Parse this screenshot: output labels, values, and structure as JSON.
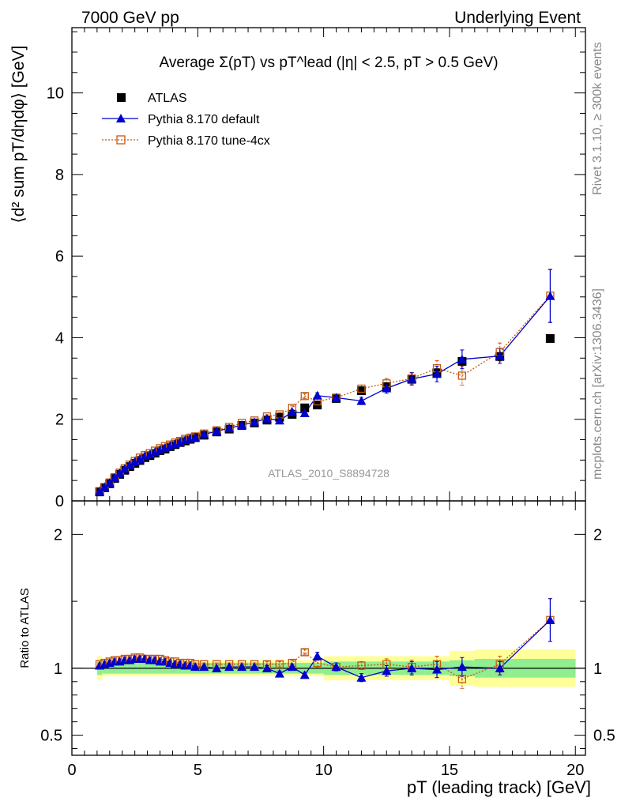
{
  "header": {
    "left": "7000 GeV pp",
    "right": "Underlying Event"
  },
  "side": {
    "rivet": "Rivet 3.1.10, ≥ 300k events",
    "mcplots": "mcplots.cern.ch [arXiv:1306.3436]"
  },
  "chart_data": [
    {
      "type": "scatter",
      "title": "Average Σ(pT) vs pT^lead (|η| < 2.5, pT > 0.5 GeV)",
      "ylabel": "⟨d² sum pT/dηdφ⟩ [GeV]",
      "xlabel": "pT (leading track) [GeV]",
      "xlim": [
        0,
        20.4
      ],
      "ylim": [
        0,
        11.6
      ],
      "xticks": [
        "0",
        "5",
        "10",
        "15",
        "20"
      ],
      "yticks": [
        "0",
        "2",
        "4",
        "6",
        "8",
        "10"
      ],
      "watermark": "ATLAS_2010_S8894728",
      "legend_position": "top-left",
      "x": [
        1.1,
        1.3,
        1.5,
        1.7,
        1.9,
        2.1,
        2.3,
        2.5,
        2.7,
        2.9,
        3.1,
        3.3,
        3.5,
        3.7,
        3.9,
        4.1,
        4.3,
        4.5,
        4.7,
        4.9,
        5.25,
        5.75,
        6.25,
        6.75,
        7.25,
        7.75,
        8.25,
        8.75,
        9.25,
        9.75,
        10.5,
        11.5,
        12.5,
        13.5,
        14.5,
        15.5,
        17.0,
        19.0
      ],
      "series": [
        {
          "name": "ATLAS",
          "color": "#000000",
          "marker": "square",
          "values": [
            0.22,
            0.32,
            0.42,
            0.55,
            0.65,
            0.75,
            0.84,
            0.92,
            0.99,
            1.06,
            1.11,
            1.17,
            1.23,
            1.27,
            1.33,
            1.38,
            1.43,
            1.47,
            1.51,
            1.55,
            1.61,
            1.69,
            1.76,
            1.85,
            1.91,
            1.98,
            2.05,
            2.12,
            2.28,
            2.35,
            2.51,
            2.7,
            2.8,
            2.98,
            3.14,
            3.42,
            3.54,
            3.98
          ]
        },
        {
          "name": "Pythia 8.170 default",
          "color": "#0000cc",
          "marker": "triangle",
          "values": [
            0.24,
            0.34,
            0.44,
            0.57,
            0.68,
            0.79,
            0.88,
            0.96,
            1.03,
            1.1,
            1.14,
            1.2,
            1.25,
            1.3,
            1.35,
            1.4,
            1.44,
            1.49,
            1.53,
            1.56,
            1.63,
            1.71,
            1.78,
            1.86,
            1.93,
            2.02,
            1.97,
            2.18,
            2.15,
            2.58,
            2.53,
            2.45,
            2.76,
            2.99,
            3.11,
            3.47,
            3.55,
            5.02
          ],
          "err": [
            0.02,
            0.02,
            0.02,
            0.02,
            0.02,
            0.02,
            0.02,
            0.02,
            0.02,
            0.02,
            0.02,
            0.02,
            0.02,
            0.02,
            0.02,
            0.02,
            0.02,
            0.02,
            0.02,
            0.02,
            0.03,
            0.03,
            0.03,
            0.03,
            0.03,
            0.04,
            0.04,
            0.05,
            0.06,
            0.07,
            0.07,
            0.09,
            0.12,
            0.15,
            0.19,
            0.23,
            0.18,
            0.65
          ]
        },
        {
          "name": "Pythia 8.170 tune-4cx",
          "color": "#c45a10",
          "marker": "open-square",
          "values": [
            0.24,
            0.34,
            0.45,
            0.58,
            0.69,
            0.8,
            0.89,
            0.98,
            1.06,
            1.12,
            1.17,
            1.23,
            1.29,
            1.34,
            1.38,
            1.43,
            1.47,
            1.52,
            1.55,
            1.58,
            1.65,
            1.73,
            1.81,
            1.91,
            1.97,
            2.07,
            2.12,
            2.28,
            2.57,
            2.44,
            2.53,
            2.75,
            2.88,
            3.0,
            3.25,
            3.07,
            3.65,
            5.03
          ],
          "err": [
            0.02,
            0.02,
            0.02,
            0.02,
            0.02,
            0.02,
            0.02,
            0.02,
            0.02,
            0.02,
            0.02,
            0.02,
            0.02,
            0.02,
            0.02,
            0.02,
            0.02,
            0.02,
            0.02,
            0.02,
            0.03,
            0.03,
            0.03,
            0.03,
            0.03,
            0.04,
            0.04,
            0.05,
            0.06,
            0.07,
            0.07,
            0.09,
            0.12,
            0.15,
            0.19,
            0.23,
            0.22,
            0.65
          ]
        }
      ]
    },
    {
      "type": "scatter",
      "ylabel": "Ratio to ATLAS",
      "xlim": [
        0,
        20.4
      ],
      "ylim": [
        0.35,
        2.25
      ],
      "yticks": [
        "0.5",
        "1",
        "2"
      ],
      "band_edges": [
        1.0,
        1.2,
        1.4,
        1.6,
        1.8,
        2.0,
        2.2,
        2.4,
        2.6,
        2.8,
        3.0,
        3.2,
        3.4,
        3.6,
        3.8,
        4.0,
        4.2,
        4.4,
        4.6,
        4.8,
        5.0,
        5.5,
        6.0,
        6.5,
        7.0,
        7.5,
        8.0,
        8.5,
        9.0,
        9.5,
        10.0,
        11.0,
        12.0,
        13.0,
        14.0,
        15.0,
        16.0,
        18.0,
        20.0
      ],
      "band_inner": [
        0.05,
        0.04,
        0.04,
        0.04,
        0.04,
        0.04,
        0.04,
        0.04,
        0.04,
        0.04,
        0.04,
        0.04,
        0.04,
        0.04,
        0.04,
        0.04,
        0.04,
        0.04,
        0.04,
        0.04,
        0.04,
        0.04,
        0.04,
        0.04,
        0.04,
        0.04,
        0.04,
        0.04,
        0.04,
        0.04,
        0.05,
        0.05,
        0.05,
        0.05,
        0.05,
        0.06,
        0.07,
        0.07
      ],
      "band_outer": [
        0.09,
        0.06,
        0.06,
        0.06,
        0.06,
        0.06,
        0.06,
        0.06,
        0.06,
        0.06,
        0.06,
        0.06,
        0.06,
        0.06,
        0.06,
        0.06,
        0.06,
        0.06,
        0.06,
        0.06,
        0.06,
        0.06,
        0.06,
        0.06,
        0.06,
        0.06,
        0.06,
        0.06,
        0.06,
        0.06,
        0.09,
        0.09,
        0.09,
        0.09,
        0.09,
        0.13,
        0.14,
        0.14
      ],
      "x": [
        1.1,
        1.3,
        1.5,
        1.7,
        1.9,
        2.1,
        2.3,
        2.5,
        2.7,
        2.9,
        3.1,
        3.3,
        3.5,
        3.7,
        3.9,
        4.1,
        4.3,
        4.5,
        4.7,
        4.9,
        5.25,
        5.75,
        6.25,
        6.75,
        7.25,
        7.75,
        8.25,
        8.75,
        9.25,
        9.75,
        10.5,
        11.5,
        12.5,
        13.5,
        14.5,
        15.5,
        17.0,
        19.0
      ],
      "series": [
        {
          "name": "Pythia 8.170 default",
          "color": "#0000cc",
          "marker": "triangle",
          "values": [
            1.02,
            1.03,
            1.04,
            1.05,
            1.05,
            1.06,
            1.06,
            1.07,
            1.07,
            1.07,
            1.06,
            1.06,
            1.05,
            1.05,
            1.04,
            1.03,
            1.03,
            1.02,
            1.02,
            1.01,
            1.01,
            1.0,
            1.01,
            1.01,
            1.01,
            1.0,
            0.96,
            1.01,
            0.95,
            1.09,
            1.01,
            0.93,
            0.98,
            1.0,
            0.99,
            1.01,
            1.0,
            1.36
          ],
          "err": [
            0.01,
            0.01,
            0.01,
            0.01,
            0.01,
            0.01,
            0.01,
            0.01,
            0.01,
            0.01,
            0.01,
            0.01,
            0.01,
            0.01,
            0.01,
            0.01,
            0.01,
            0.01,
            0.01,
            0.01,
            0.01,
            0.01,
            0.01,
            0.01,
            0.01,
            0.02,
            0.02,
            0.02,
            0.02,
            0.03,
            0.03,
            0.03,
            0.04,
            0.05,
            0.06,
            0.07,
            0.05,
            0.16
          ]
        },
        {
          "name": "Pythia 8.170 tune-4cx",
          "color": "#c45a10",
          "marker": "open-square",
          "values": [
            1.03,
            1.04,
            1.05,
            1.06,
            1.06,
            1.07,
            1.07,
            1.08,
            1.08,
            1.07,
            1.07,
            1.07,
            1.07,
            1.06,
            1.05,
            1.05,
            1.04,
            1.04,
            1.04,
            1.03,
            1.03,
            1.03,
            1.03,
            1.03,
            1.03,
            1.03,
            1.03,
            1.04,
            1.12,
            1.04,
            1.01,
            1.02,
            1.03,
            1.01,
            1.03,
            0.92,
            1.03,
            1.36
          ],
          "err": [
            0.01,
            0.01,
            0.01,
            0.01,
            0.01,
            0.01,
            0.01,
            0.01,
            0.01,
            0.01,
            0.01,
            0.01,
            0.01,
            0.01,
            0.01,
            0.01,
            0.01,
            0.01,
            0.01,
            0.01,
            0.01,
            0.01,
            0.01,
            0.01,
            0.01,
            0.02,
            0.02,
            0.02,
            0.02,
            0.03,
            0.03,
            0.03,
            0.04,
            0.05,
            0.06,
            0.07,
            0.06,
            0.16
          ]
        }
      ]
    }
  ],
  "colors": {
    "band_inner": "#90ee90",
    "band_outer": "#ffff99",
    "default": "#0000cc",
    "tune": "#c45a10"
  }
}
